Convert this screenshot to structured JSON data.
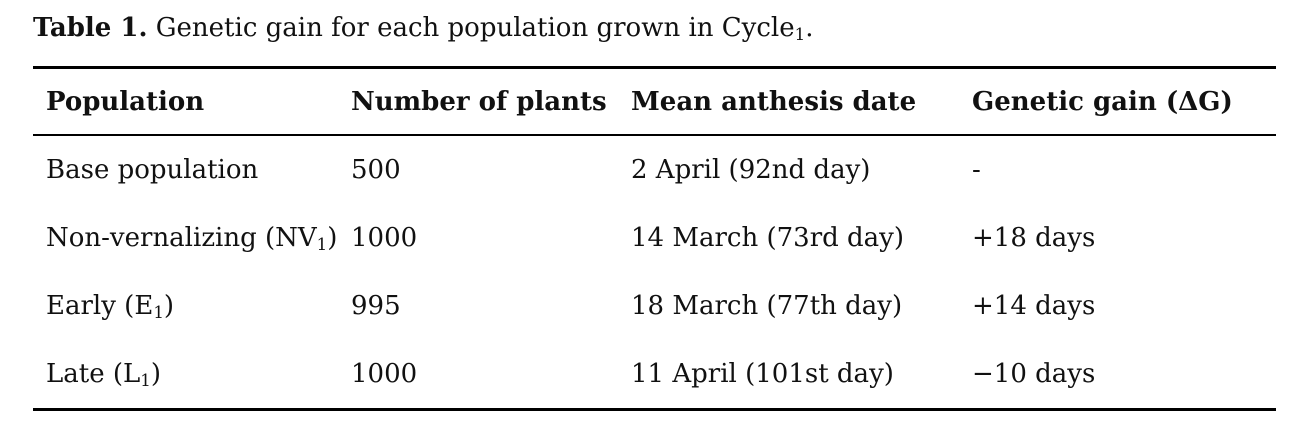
{
  "caption": {
    "label": "Table 1.",
    "text": " Genetic gain for each population grown in Cycle",
    "subscript": "1",
    "after": "."
  },
  "table": {
    "columns": [
      "Population",
      "Number of plants",
      "Mean anthesis date",
      "Genetic gain (ΔG)"
    ],
    "rows": [
      {
        "population": {
          "text": "Base population",
          "sub": "",
          "after": ""
        },
        "plants": "500",
        "anthesis": "2 April (92nd day)",
        "gain": "-"
      },
      {
        "population": {
          "text": "Non-vernalizing (NV",
          "sub": "1",
          "after": ")"
        },
        "plants": "1000",
        "anthesis": "14 March (73rd day)",
        "gain": "+18 days"
      },
      {
        "population": {
          "text": "Early (E",
          "sub": "1",
          "after": ")"
        },
        "plants": "995",
        "anthesis": "18 March (77th day)",
        "gain": "+14 days"
      },
      {
        "population": {
          "text": "Late (L",
          "sub": "1",
          "after": ")"
        },
        "plants": "1000",
        "anthesis": "11 April (101st day)",
        "gain": "−10 days"
      }
    ]
  },
  "colors": {
    "text": "#111111",
    "rule": "#000000",
    "background": "#ffffff"
  }
}
